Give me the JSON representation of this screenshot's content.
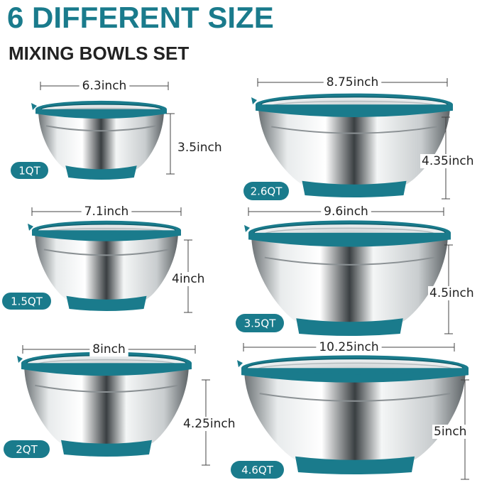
{
  "header": {
    "title": "6 DIFFERENT SIZE",
    "subtitle": "MIXING BOWLS SET"
  },
  "bowls": [
    {
      "capacity": "1QT",
      "width": "6.3inch",
      "height": "3.5inch"
    },
    {
      "capacity": "2.6QT",
      "width": "8.75inch",
      "height": "4.35inch"
    },
    {
      "capacity": "1.5QT",
      "width": "7.1inch",
      "height": "4inch"
    },
    {
      "capacity": "3.5QT",
      "width": "9.6inch",
      "height": "4.5inch"
    },
    {
      "capacity": "2QT",
      "width": "8inch",
      "height": "4.25inch"
    },
    {
      "capacity": "4.6QT",
      "width": "10.25inch",
      "height": "5inch"
    }
  ]
}
